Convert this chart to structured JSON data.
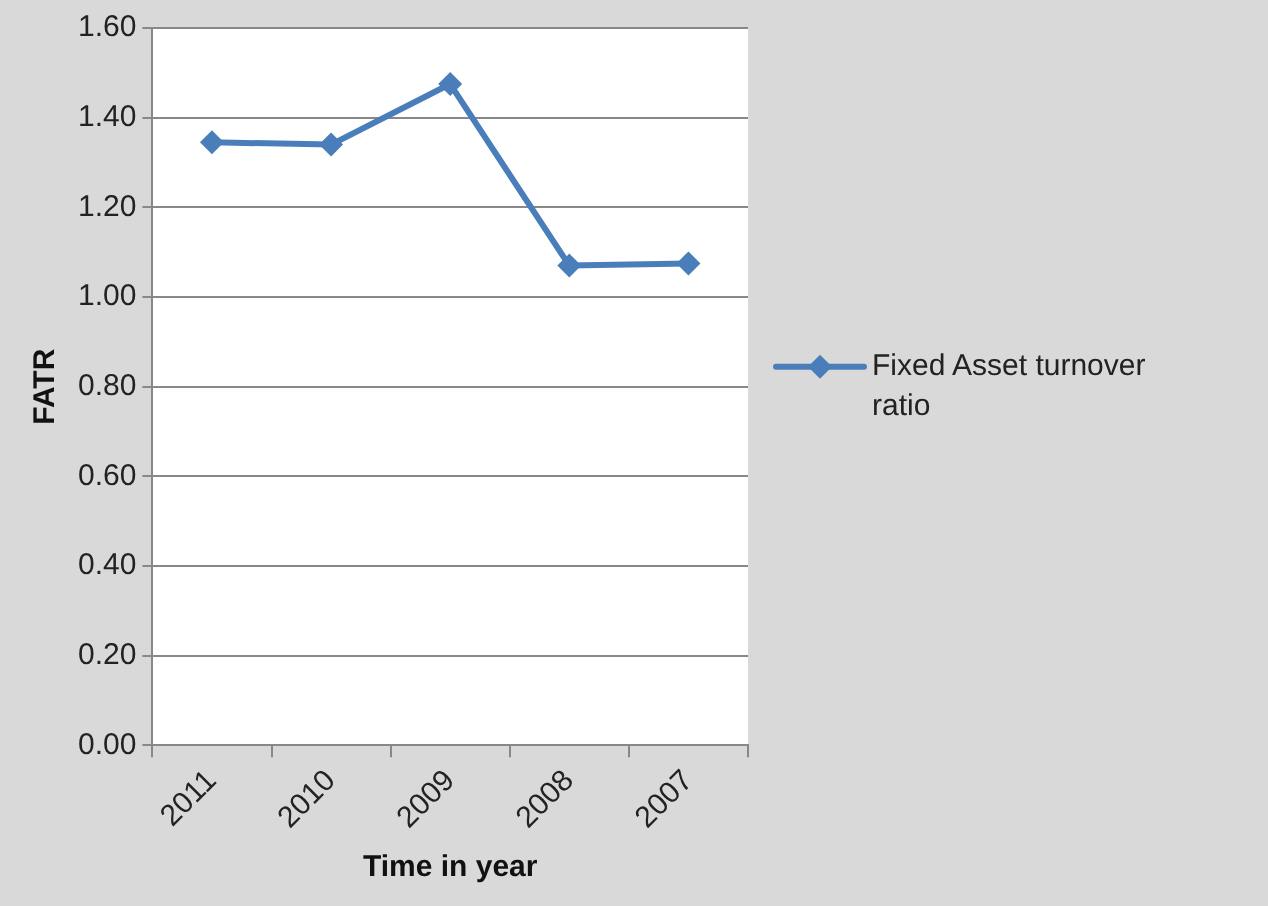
{
  "chart_data": {
    "type": "line",
    "xlabel": "Time in year",
    "ylabel": "FATR",
    "categories": [
      "2011",
      "2010",
      "2009",
      "2008",
      "2007"
    ],
    "series": [
      {
        "name": "Fixed Asset turnover ratio",
        "color": "#4a7ebb",
        "values": [
          1.345,
          1.34,
          1.475,
          1.07,
          1.075
        ]
      }
    ],
    "ylim": [
      0,
      1.6
    ],
    "yticks": [
      {
        "value": 0,
        "label": "0.00"
      },
      {
        "value": 0.2,
        "label": "0.20"
      },
      {
        "value": 0.4,
        "label": "0.40"
      },
      {
        "value": 0.6,
        "label": "0.60"
      },
      {
        "value": 0.8,
        "label": "0.80"
      },
      {
        "value": 1,
        "label": "1.00"
      },
      {
        "value": 1.2,
        "label": "1.20"
      },
      {
        "value": 1.4,
        "label": "1.40"
      },
      {
        "value": 1.6,
        "label": "1.60"
      }
    ],
    "grid": "y",
    "legend": "right",
    "marker": "diamond",
    "line_style": "solid"
  }
}
